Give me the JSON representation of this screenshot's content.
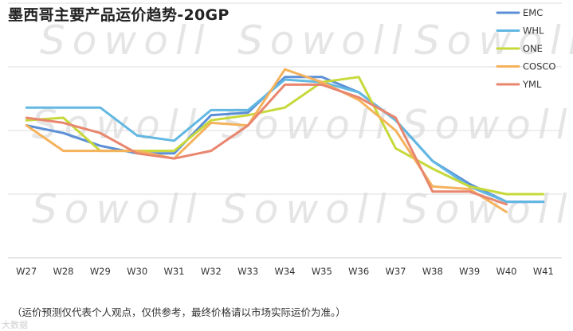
{
  "header": {
    "title": "墨西哥主要产品运价趋势-20GP"
  },
  "watermark": {
    "text": "Sowoll"
  },
  "footnote": "（运价预测仅代表个人观点，仅供参考，最终价格请以市场实际运价为准。）",
  "footer_logo": "大数据",
  "chart_data": {
    "type": "line",
    "title": "墨西哥主要产品运价趋势-20GP",
    "xlabel": "",
    "ylabel": "",
    "categories": [
      "W27",
      "W28",
      "W29",
      "W30",
      "W31",
      "W32",
      "W33",
      "W34",
      "W35",
      "W36",
      "W37",
      "W38",
      "W39",
      "W40",
      "W41"
    ],
    "ylim": [
      0,
      100
    ],
    "grid": true,
    "legend_position": "top-right",
    "series": [
      {
        "name": "EMC",
        "color": "#5b8fd6",
        "values": [
          52,
          49,
          44,
          41,
          41,
          56,
          57,
          71,
          71,
          65,
          54,
          38,
          29,
          22,
          22
        ]
      },
      {
        "name": "WHL",
        "color": "#62b8e2",
        "values": [
          59,
          59,
          59,
          48,
          46,
          58,
          58,
          70,
          69,
          65,
          54,
          38,
          28,
          22,
          22
        ]
      },
      {
        "name": "ONE",
        "color": "#c7d93a",
        "values": [
          54,
          55,
          42,
          42,
          42,
          54,
          56,
          59,
          69,
          71,
          43,
          35,
          28,
          25,
          25
        ]
      },
      {
        "name": "COSCO",
        "color": "#f5b25c",
        "values": [
          52,
          42,
          42,
          42,
          39,
          53,
          52,
          74,
          69,
          62,
          50,
          28,
          27,
          18,
          null
        ]
      },
      {
        "name": "YML",
        "color": "#e8866e",
        "values": [
          55,
          53,
          49,
          41,
          39,
          42,
          52,
          68,
          68,
          63,
          55,
          26,
          26,
          21,
          null
        ]
      }
    ]
  }
}
